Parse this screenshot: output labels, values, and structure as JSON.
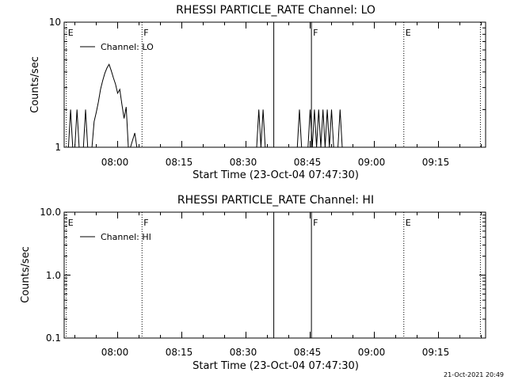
{
  "chart_data": [
    {
      "type": "line",
      "title": "RHESSI PARTICLE_RATE Channel: LO",
      "xlabel": "Start Time (23-Oct-04 07:47:30)",
      "ylabel": "Counts/sec",
      "yscale": "log",
      "ylim": [
        1,
        10
      ],
      "xlim": [
        "07:48",
        "09:27"
      ],
      "x_ticks": [
        "08:00",
        "08:15",
        "08:30",
        "08:45",
        "09:00",
        "09:15"
      ],
      "y_ticks": [
        "1",
        "10"
      ],
      "legend": "Channel: LO",
      "legend_position": "top-left",
      "markers": [
        {
          "time": "07:48",
          "label": "E",
          "style": "dotted"
        },
        {
          "time": "08:05.7",
          "label": "F",
          "style": "dotted"
        },
        {
          "time": "08:36.5",
          "label": "",
          "style": "solid"
        },
        {
          "time": "08:45.3",
          "label": "F",
          "style": "solid"
        },
        {
          "time": "09:06.9",
          "label": "E",
          "style": "dotted"
        },
        {
          "time": "09:24.8",
          "label": "",
          "style": "dotted"
        }
      ],
      "series": [
        {
          "name": "Channel: LO",
          "points": [
            [
              "07:48.5",
              1
            ],
            [
              "07:49.0",
              2
            ],
            [
              "07:49.5",
              1
            ],
            [
              "07:50.0",
              1
            ],
            [
              "07:50.5",
              2
            ],
            [
              "07:51.0",
              1
            ],
            [
              "07:51.5",
              1
            ],
            [
              "07:52.0",
              1
            ],
            [
              "07:52.5",
              2
            ],
            [
              "07:53.0",
              1
            ],
            [
              "07:54.0",
              1
            ],
            [
              "07:54.5",
              1.6
            ],
            [
              "07:55.0",
              1.9
            ],
            [
              "07:55.5",
              2.3
            ],
            [
              "07:56.0",
              2.9
            ],
            [
              "07:56.5",
              3.4
            ],
            [
              "07:57.0",
              3.9
            ],
            [
              "07:57.5",
              4.3
            ],
            [
              "07:58.0",
              4.6
            ],
            [
              "07:58.5",
              4.1
            ],
            [
              "07:59.0",
              3.6
            ],
            [
              "07:59.5",
              3.2
            ],
            [
              "08:00.0",
              2.7
            ],
            [
              "08:00.5",
              2.9
            ],
            [
              "08:01.0",
              2.2
            ],
            [
              "08:01.5",
              1.7
            ],
            [
              "08:02.0",
              2.1
            ],
            [
              "08:02.5",
              1
            ],
            [
              "08:03.0",
              1
            ],
            [
              "08:04.0",
              1.3
            ],
            [
              "08:04.5",
              1
            ],
            [
              "08:05.0",
              1
            ],
            [
              "08:32.5",
              1
            ],
            [
              "08:33.0",
              2
            ],
            [
              "08:33.5",
              1
            ],
            [
              "08:34.0",
              2
            ],
            [
              "08:34.5",
              1
            ],
            [
              "08:42.0",
              1
            ],
            [
              "08:42.5",
              2
            ],
            [
              "08:43.0",
              1
            ],
            [
              "08:44.5",
              1
            ],
            [
              "08:45.0",
              2
            ],
            [
              "08:45.5",
              1
            ],
            [
              "08:46.0",
              2
            ],
            [
              "08:46.5",
              1
            ],
            [
              "08:47.0",
              2
            ],
            [
              "08:47.5",
              1
            ],
            [
              "08:48.0",
              2
            ],
            [
              "08:48.5",
              1
            ],
            [
              "08:49.0",
              2
            ],
            [
              "08:49.5",
              1
            ],
            [
              "08:50.0",
              2
            ],
            [
              "08:50.5",
              1
            ],
            [
              "08:51.5",
              1
            ],
            [
              "08:52.0",
              2
            ],
            [
              "08:52.5",
              1
            ]
          ]
        }
      ]
    },
    {
      "type": "line",
      "title": "RHESSI PARTICLE_RATE Channel: HI",
      "xlabel": "Start Time (23-Oct-04 07:47:30)",
      "ylabel": "Counts/sec",
      "yscale": "log",
      "ylim": [
        0.1,
        10
      ],
      "xlim": [
        "07:48",
        "09:27"
      ],
      "x_ticks": [
        "08:00",
        "08:15",
        "08:30",
        "08:45",
        "09:00",
        "09:15"
      ],
      "y_ticks": [
        "0.1",
        "1.0",
        "10.0"
      ],
      "legend": "Channel: HI",
      "legend_position": "top-left",
      "markers": [
        {
          "time": "07:48",
          "label": "E",
          "style": "dotted"
        },
        {
          "time": "08:05.7",
          "label": "F",
          "style": "dotted"
        },
        {
          "time": "08:36.5",
          "label": "",
          "style": "solid"
        },
        {
          "time": "08:45.3",
          "label": "F",
          "style": "solid"
        },
        {
          "time": "09:06.9",
          "label": "E",
          "style": "dotted"
        },
        {
          "time": "09:24.8",
          "label": "",
          "style": "dotted"
        }
      ],
      "series": [
        {
          "name": "Channel: HI",
          "points": []
        }
      ]
    }
  ],
  "footer": {
    "timestamp": "21-Oct-2021 20:49"
  }
}
